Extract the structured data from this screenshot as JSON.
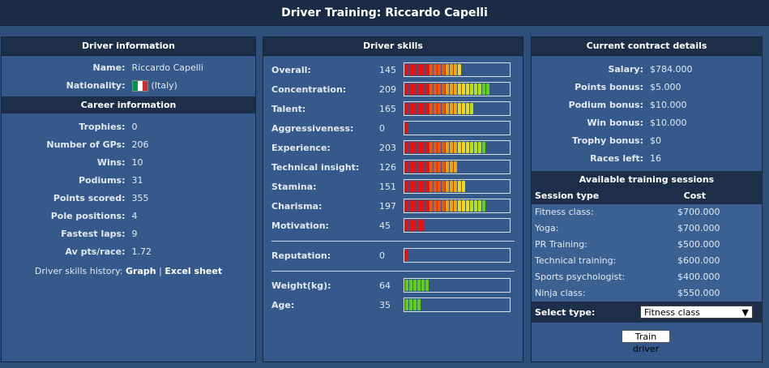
{
  "title": "Driver Training: Riccardo Capelli",
  "driver_info": {
    "header": "Driver information",
    "name_label": "Name:",
    "name_value": "Riccardo Capelli",
    "nationality_label": "Nationality:",
    "nationality_value": "(Italy)",
    "flag_colors": [
      "#009246",
      "#ffffff",
      "#ce2b37"
    ]
  },
  "career": {
    "header": "Career information",
    "rows": [
      {
        "label": "Trophies:",
        "value": "0"
      },
      {
        "label": "Number of GPs:",
        "value": "206"
      },
      {
        "label": "Wins:",
        "value": "10"
      },
      {
        "label": "Podiums:",
        "value": "31"
      },
      {
        "label": "Points scored:",
        "value": "355"
      },
      {
        "label": "Pole positions:",
        "value": "4"
      },
      {
        "label": "Fastest laps:",
        "value": "9"
      },
      {
        "label": "Av pts/race:",
        "value": "1.72"
      }
    ],
    "history_label": "Driver skills history:",
    "graph_link": "Graph",
    "separator": "|",
    "excel_link": "Excel sheet"
  },
  "skills": {
    "header": "Driver skills",
    "max": 250,
    "rows": [
      {
        "name": "Overall:",
        "value": 145
      },
      {
        "name": "Concentration:",
        "value": 209
      },
      {
        "name": "Talent:",
        "value": 165
      },
      {
        "name": "Aggressiveness:",
        "value": 0
      },
      {
        "name": "Experience:",
        "value": 203
      },
      {
        "name": "Technical insight:",
        "value": 126
      },
      {
        "name": "Stamina:",
        "value": 151
      },
      {
        "name": "Charisma:",
        "value": 197
      },
      {
        "name": "Motivation:",
        "value": 45
      }
    ],
    "reputation": {
      "name": "Reputation:",
      "value": 0
    },
    "physical": [
      {
        "name": "Weight(kg):",
        "value": 64
      },
      {
        "name": "Age:",
        "value": 35
      }
    ]
  },
  "contract": {
    "header": "Current contract details",
    "rows": [
      {
        "label": "Salary:",
        "value": "$784.000"
      },
      {
        "label": "Points bonus:",
        "value": "$5.000"
      },
      {
        "label": "Podium bonus:",
        "value": "$10.000"
      },
      {
        "label": "Win bonus:",
        "value": "$10.000"
      },
      {
        "label": "Trophy bonus:",
        "value": "$0"
      },
      {
        "label": "Races left:",
        "value": "16"
      }
    ]
  },
  "training": {
    "header": "Available training sessions",
    "col_type": "Session type",
    "col_cost": "Cost",
    "sessions": [
      {
        "type": "Fitness class:",
        "cost": "$700.000"
      },
      {
        "type": "Yoga:",
        "cost": "$700.000"
      },
      {
        "type": "PR Training:",
        "cost": "$500.000"
      },
      {
        "type": "Technical training:",
        "cost": "$600.000"
      },
      {
        "type": "Sports psychologist:",
        "cost": "$400.000"
      },
      {
        "type": "Ninja class:",
        "cost": "$550.000"
      }
    ],
    "select_label": "Select type:",
    "selected": "Fitness class",
    "button": "Train driver"
  }
}
